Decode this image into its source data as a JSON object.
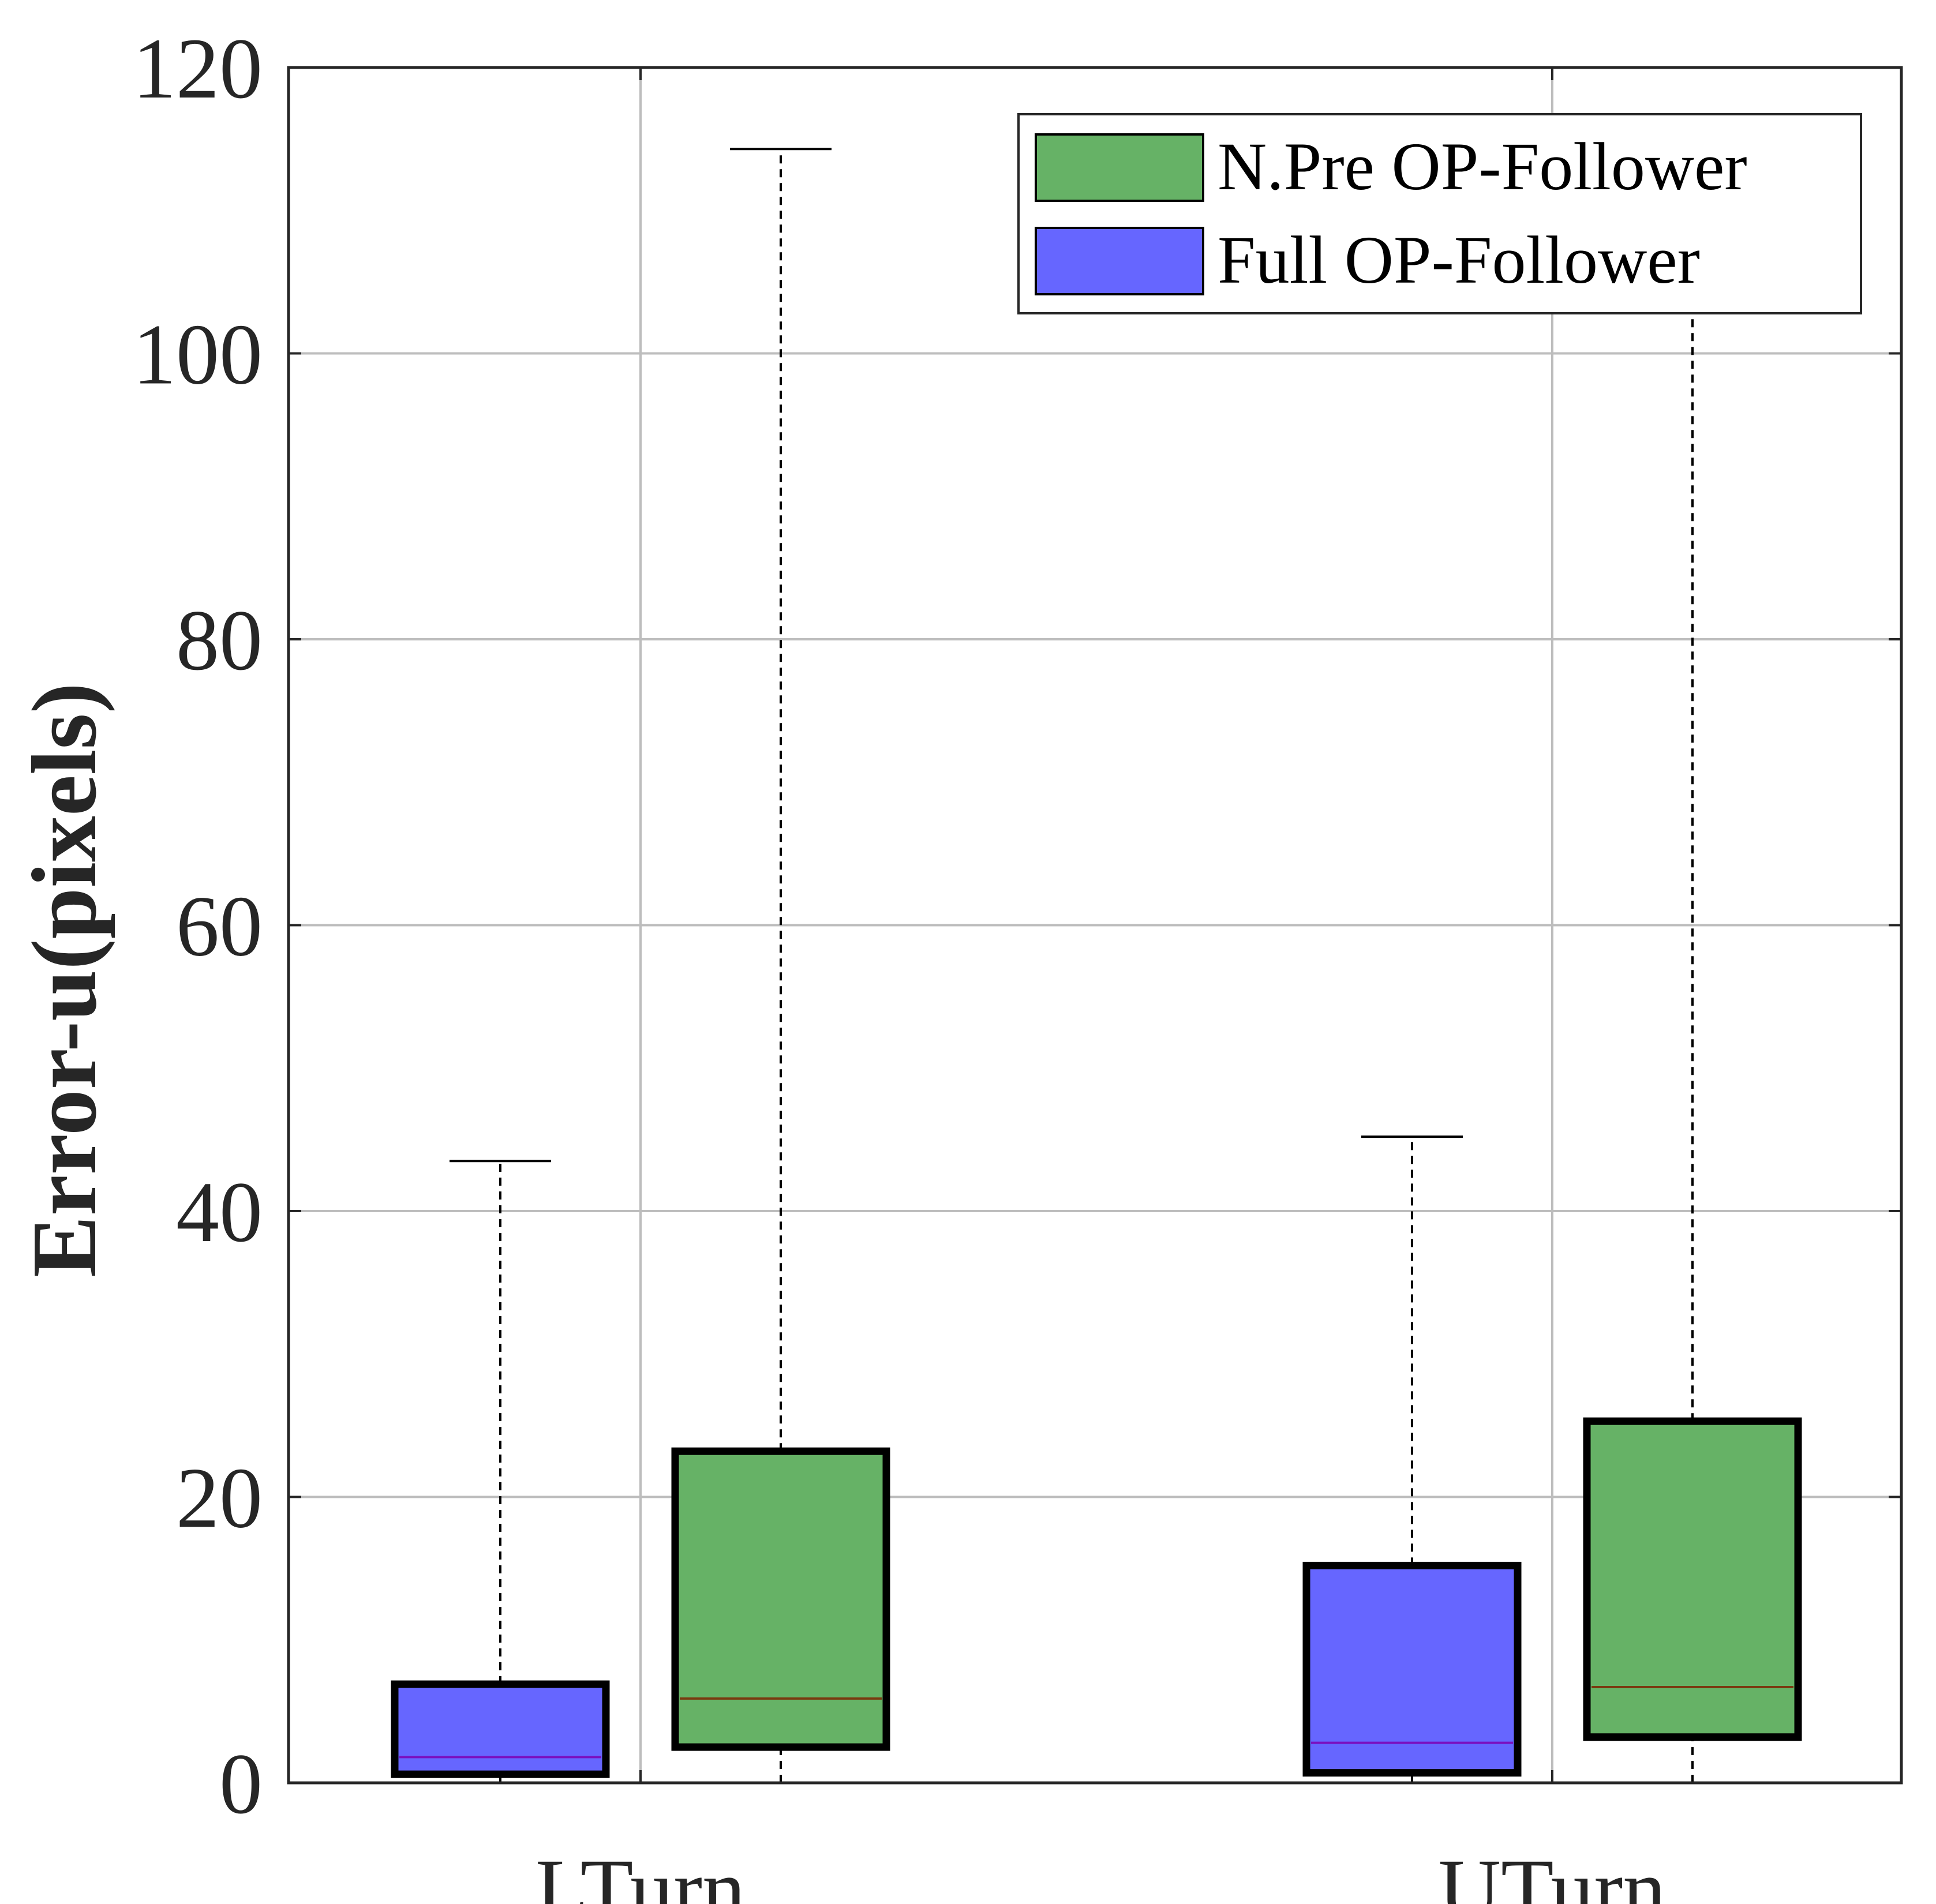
{
  "chart_data": {
    "type": "boxplot",
    "title": "",
    "xlabel": "",
    "ylabel": "Error-u(pixels)",
    "ylim": [
      0,
      120
    ],
    "yticks": [
      0,
      20,
      40,
      60,
      80,
      100,
      120
    ],
    "grid": true,
    "categories": [
      "LTurn",
      "UTurn"
    ],
    "legend_position": "top-right",
    "series": [
      {
        "name": "N.Pre OP-Follower",
        "color": "#66b266",
        "median_color": "#7a3a10",
        "boxes": [
          {
            "category": "LTurn",
            "whisker_low": 0,
            "q1": 2.5,
            "median": 5.9,
            "q3": 23.2,
            "whisker_high": 114.3
          },
          {
            "category": "UTurn",
            "whisker_low": 0,
            "q1": 3.2,
            "median": 6.7,
            "q3": 25.3,
            "whisker_high": 102.9
          }
        ]
      },
      {
        "name": "Full OP-Follower",
        "color": "#6666ff",
        "median_color": "#7a10c0",
        "boxes": [
          {
            "category": "LTurn",
            "whisker_low": 0,
            "q1": 0.6,
            "median": 1.8,
            "q3": 6.9,
            "whisker_high": 43.5
          },
          {
            "category": "UTurn",
            "whisker_low": 0,
            "q1": 0.7,
            "median": 2.8,
            "q3": 15.2,
            "whisker_high": 45.2
          }
        ]
      }
    ]
  }
}
